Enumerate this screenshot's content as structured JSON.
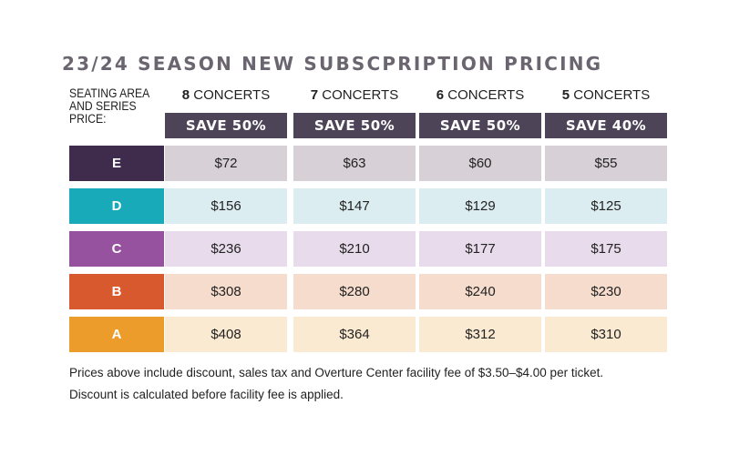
{
  "title": "23/24 SEASON NEW SUBSCPRIPTION PRICING",
  "seating_label_lines": [
    "SEATING AREA",
    "AND SERIES",
    "PRICE:"
  ],
  "columns": [
    {
      "num": "8",
      "label": "CONCERTS",
      "save": "SAVE 50%"
    },
    {
      "num": "7",
      "label": "CONCERTS",
      "save": "SAVE 50%"
    },
    {
      "num": "6",
      "label": "CONCERTS",
      "save": "SAVE 50%"
    },
    {
      "num": "5",
      "label": "CONCERTS",
      "save": "SAVE 40%"
    }
  ],
  "rows": [
    {
      "area": "E",
      "color": "#3f2c4c",
      "cell_bg": "#d8d0d7",
      "prices": [
        "$72",
        "$63",
        "$60",
        "$55"
      ]
    },
    {
      "area": "D",
      "color": "#19aab9",
      "cell_bg": "#dcedf1",
      "prices": [
        "$156",
        "$147",
        "$129",
        "$125"
      ]
    },
    {
      "area": "C",
      "color": "#96529e",
      "cell_bg": "#e8dcec",
      "prices": [
        "$236",
        "$210",
        "$177",
        "$175"
      ]
    },
    {
      "area": "B",
      "color": "#d9592e",
      "cell_bg": "#f6dccc",
      "prices": [
        "$308",
        "$280",
        "$240",
        "$230"
      ]
    },
    {
      "area": "A",
      "color": "#ec9c2b",
      "cell_bg": "#fbead2",
      "prices": [
        "$408",
        "$364",
        "$312",
        "$310"
      ]
    }
  ],
  "footnote_lines": [
    "Prices above include discount, sales tax and Overture Center facility fee of $3.50–$4.00 per ticket.",
    "Discount is calculated before facility fee is applied."
  ]
}
